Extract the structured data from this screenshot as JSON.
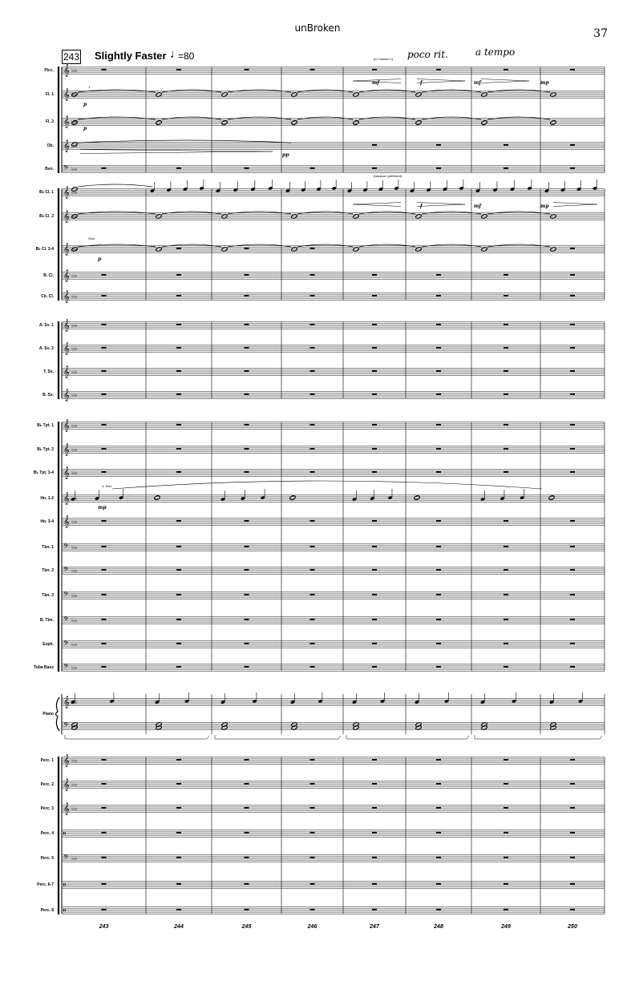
{
  "header": {
    "title": "unBroken",
    "page_number": "37"
  },
  "tempo": {
    "rehearsal": "243",
    "text": "Slightly Faster",
    "note_glyph": "♩",
    "value": "=80"
  },
  "expressions": {
    "poco_rit": "poco rit.",
    "a_tempo": "a tempo"
  },
  "small_texts": {
    "to_clarinet": "(to Clarinet 1)",
    "bassoon_preferred": "(bassoon preferred)",
    "solo": "Solo",
    "one_solo": "1. Solo",
    "one": "1."
  },
  "dynamics": {
    "p": "p",
    "pp": "pp",
    "mf": "mf",
    "f": "f",
    "mp": "mp"
  },
  "instruments": [
    {
      "label": "Picc.",
      "clef": "treble"
    },
    {
      "label": "Fl. 1",
      "clef": "treble"
    },
    {
      "label": "Fl. 2",
      "clef": "treble"
    },
    {
      "label": "Ob.",
      "clef": "treble"
    },
    {
      "label": "Bsn.",
      "clef": "bass"
    },
    {
      "label": "B♭ Cl. 1",
      "clef": "treble"
    },
    {
      "label": "B♭ Cl. 2",
      "clef": "treble"
    },
    {
      "label": "B♭ Cl. 3-4",
      "clef": "treble"
    },
    {
      "label": "B. Cl.",
      "clef": "treble"
    },
    {
      "label": "Cb. Cl.",
      "clef": "treble"
    },
    {
      "label": "A. Sx. 1",
      "clef": "treble"
    },
    {
      "label": "A. Sx. 2",
      "clef": "treble"
    },
    {
      "label": "T. Sx.",
      "clef": "treble"
    },
    {
      "label": "B. Sx.",
      "clef": "treble"
    },
    {
      "label": "B♭ Tpt. 1",
      "clef": "treble"
    },
    {
      "label": "B♭ Tpt. 2",
      "clef": "treble"
    },
    {
      "label": "B♭ Tpt. 3-4",
      "clef": "treble"
    },
    {
      "label": "Hn. 1-2",
      "clef": "treble"
    },
    {
      "label": "Hn. 3-4",
      "clef": "treble"
    },
    {
      "label": "Tbn. 1",
      "clef": "bass"
    },
    {
      "label": "Tbn. 2",
      "clef": "bass"
    },
    {
      "label": "Tbn. 3",
      "clef": "bass"
    },
    {
      "label": "B. Tbn.",
      "clef": "bass"
    },
    {
      "label": "Euph.",
      "clef": "bass"
    },
    {
      "label": "Tuba Bass",
      "clef": "bass"
    },
    {
      "label": "Piano",
      "clef": "grand"
    },
    {
      "label": "Perc. 1",
      "clef": "treble"
    },
    {
      "label": "Perc. 2",
      "clef": "treble"
    },
    {
      "label": "Perc. 3",
      "clef": "treble"
    },
    {
      "label": "Perc. 4",
      "clef": "percussion"
    },
    {
      "label": "Perc. 5",
      "clef": "bass"
    },
    {
      "label": "Perc. 6-7",
      "clef": "percussion"
    },
    {
      "label": "Perc. 8",
      "clef": "percussion"
    }
  ],
  "measure_numbers": [
    "243",
    "244",
    "245",
    "246",
    "247",
    "248",
    "249",
    "250"
  ]
}
